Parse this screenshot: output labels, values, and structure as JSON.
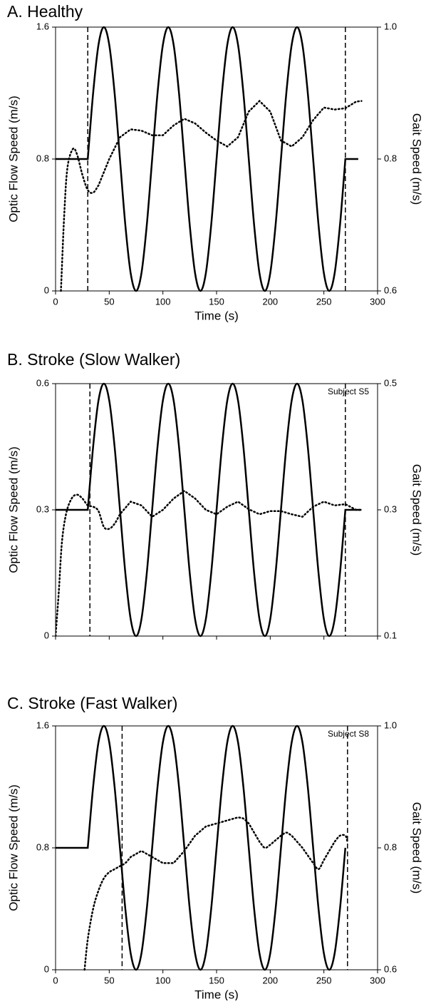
{
  "chart_data": [
    {
      "type": "line",
      "title": "A. Healthy",
      "xlabel": "Time (s)",
      "ylabel": "Optic Flow Speed (m/s)",
      "y2label": "Gait Speed (m/s)",
      "xlim": [
        0,
        300
      ],
      "xticks": [
        0,
        50,
        100,
        150,
        200,
        250,
        300
      ],
      "show_xtick_labels": true,
      "ylim": [
        0,
        1.6
      ],
      "yticks": [
        0,
        0.8,
        1.6
      ],
      "y2lim": [
        0.6,
        1.0
      ],
      "y2ticks": [
        0.6,
        0.8,
        {
          "value": 1.0,
          "label": "1.0"
        }
      ],
      "vlines": [
        30,
        270
      ],
      "series": [
        {
          "color": "#000000",
          "style": "solid",
          "axis": "y",
          "x": [
            0,
            30,
            35,
            40,
            45,
            50,
            55,
            60,
            65,
            70,
            75,
            80,
            85,
            90,
            95,
            100,
            105,
            110,
            115,
            120,
            125,
            130,
            135,
            140,
            145,
            150,
            155,
            160,
            165,
            170,
            175,
            180,
            185,
            190,
            195,
            200,
            205,
            210,
            215,
            220,
            225,
            230,
            235,
            240,
            245,
            250,
            255,
            260,
            265,
            270,
            282
          ],
          "values": [
            0.8,
            0.8,
            1.2,
            1.493,
            1.6,
            1.493,
            1.2,
            0.8,
            0.4,
            0.107,
            0,
            0.107,
            0.4,
            0.8,
            1.2,
            1.493,
            1.6,
            1.493,
            1.2,
            0.8,
            0.4,
            0.107,
            0,
            0.107,
            0.4,
            0.8,
            1.2,
            1.493,
            1.6,
            1.493,
            1.2,
            0.8,
            0.4,
            0.107,
            0,
            0.107,
            0.4,
            0.8,
            1.2,
            1.493,
            1.6,
            1.493,
            1.2,
            0.8,
            0.4,
            0.107,
            0,
            0.107,
            0.4,
            0.8,
            0.8
          ]
        },
        {
          "color": "#000000",
          "style": "dotted",
          "axis": "y2",
          "x": [
            5,
            8,
            11,
            16,
            20,
            25,
            30,
            35,
            40,
            50,
            60,
            70,
            80,
            90,
            100,
            110,
            120,
            130,
            140,
            150,
            160,
            170,
            180,
            190,
            200,
            210,
            220,
            230,
            240,
            250,
            260,
            270,
            280,
            285
          ],
          "values": [
            0.6,
            0.713,
            0.786,
            0.815,
            0.807,
            0.776,
            0.753,
            0.749,
            0.76,
            0.8,
            0.833,
            0.845,
            0.843,
            0.836,
            0.836,
            0.851,
            0.861,
            0.854,
            0.84,
            0.828,
            0.819,
            0.833,
            0.872,
            0.888,
            0.872,
            0.828,
            0.819,
            0.833,
            0.859,
            0.878,
            0.875,
            0.877,
            0.887,
            0.888
          ]
        }
      ]
    },
    {
      "type": "line",
      "title": "B. Stroke (Slow Walker)",
      "ylabel": "Optic Flow Speed (m/s)",
      "y2label": "Gait Speed (m/s)",
      "annotation": "Subject S5",
      "xlim": [
        0,
        300
      ],
      "xticks": [
        0,
        50,
        100,
        150,
        200,
        250,
        300
      ],
      "show_xtick_labels": false,
      "ylim": [
        0,
        0.6
      ],
      "yticks": [
        0,
        0.3,
        0.6
      ],
      "y2lim": [
        0.1,
        0.5
      ],
      "y2ticks": [
        0.1,
        0.3,
        0.5
      ],
      "vlines": [
        32,
        270
      ],
      "series": [
        {
          "color": "#000000",
          "style": "solid",
          "axis": "y",
          "x": [
            0,
            30,
            35,
            40,
            45,
            50,
            55,
            60,
            65,
            70,
            75,
            80,
            85,
            90,
            95,
            100,
            105,
            110,
            115,
            120,
            125,
            130,
            135,
            140,
            145,
            150,
            155,
            160,
            165,
            170,
            175,
            180,
            185,
            190,
            195,
            200,
            205,
            210,
            215,
            220,
            225,
            230,
            235,
            240,
            245,
            250,
            255,
            260,
            265,
            270,
            285
          ],
          "values": [
            0.3,
            0.3,
            0.45,
            0.56,
            0.6,
            0.56,
            0.45,
            0.3,
            0.15,
            0.04,
            0,
            0.04,
            0.15,
            0.3,
            0.45,
            0.56,
            0.6,
            0.56,
            0.45,
            0.3,
            0.15,
            0.04,
            0,
            0.04,
            0.15,
            0.3,
            0.45,
            0.56,
            0.6,
            0.56,
            0.45,
            0.3,
            0.15,
            0.04,
            0,
            0.04,
            0.15,
            0.3,
            0.45,
            0.56,
            0.6,
            0.56,
            0.45,
            0.3,
            0.15,
            0.04,
            0,
            0.04,
            0.15,
            0.3,
            0.3
          ]
        },
        {
          "color": "#000000",
          "style": "dotted",
          "axis": "y2",
          "x": [
            0,
            3,
            6,
            10,
            15,
            20,
            25,
            30,
            35,
            40,
            45,
            50,
            55,
            60,
            70,
            80,
            90,
            100,
            110,
            120,
            130,
            140,
            150,
            160,
            170,
            180,
            190,
            200,
            210,
            220,
            230,
            240,
            250,
            260,
            270,
            280,
            285
          ],
          "values": [
            0.1,
            0.17,
            0.25,
            0.295,
            0.318,
            0.324,
            0.318,
            0.307,
            0.305,
            0.298,
            0.273,
            0.27,
            0.278,
            0.293,
            0.313,
            0.307,
            0.289,
            0.3,
            0.318,
            0.33,
            0.318,
            0.3,
            0.293,
            0.305,
            0.313,
            0.301,
            0.293,
            0.298,
            0.298,
            0.293,
            0.289,
            0.305,
            0.313,
            0.307,
            0.309,
            0.3,
            0.3
          ]
        }
      ]
    },
    {
      "type": "line",
      "title": "C. Stroke (Fast Walker)",
      "xlabel": "Time (s)",
      "ylabel": "Optic Flow Speed (m/s)",
      "y2label": "Gait Speed (m/s)",
      "annotation": "Subject S8",
      "xlim": [
        0,
        300
      ],
      "xticks": [
        0,
        50,
        100,
        150,
        200,
        250,
        300
      ],
      "show_xtick_labels": true,
      "ylim": [
        0,
        1.6
      ],
      "yticks": [
        0,
        0.8,
        1.6
      ],
      "y2lim": [
        0.6,
        1.0
      ],
      "y2ticks": [
        0.6,
        0.8,
        {
          "value": 1.0,
          "label": "1.0"
        }
      ],
      "vlines": [
        62,
        272
      ],
      "series": [
        {
          "color": "#000000",
          "style": "solid",
          "axis": "y",
          "x": [
            0,
            30,
            35,
            40,
            45,
            50,
            55,
            60,
            65,
            70,
            75,
            80,
            85,
            90,
            95,
            100,
            105,
            110,
            115,
            120,
            125,
            130,
            135,
            140,
            145,
            150,
            155,
            160,
            165,
            170,
            175,
            180,
            185,
            190,
            195,
            200,
            205,
            210,
            215,
            220,
            225,
            230,
            235,
            240,
            245,
            250,
            255,
            260,
            265,
            270
          ],
          "values": [
            0.8,
            0.8,
            1.2,
            1.493,
            1.6,
            1.493,
            1.2,
            0.8,
            0.4,
            0.107,
            0,
            0.107,
            0.4,
            0.8,
            1.2,
            1.493,
            1.6,
            1.493,
            1.2,
            0.8,
            0.4,
            0.107,
            0,
            0.107,
            0.4,
            0.8,
            1.2,
            1.493,
            1.6,
            1.493,
            1.2,
            0.8,
            0.4,
            0.107,
            0,
            0.107,
            0.4,
            0.8,
            1.2,
            1.493,
            1.6,
            1.493,
            1.2,
            0.8,
            0.4,
            0.107,
            0,
            0.107,
            0.4,
            0.8
          ]
        },
        {
          "color": "#000000",
          "style": "dotted",
          "axis": "y2",
          "x": [
            27,
            30,
            35,
            40,
            45,
            50,
            55,
            60,
            65,
            70,
            80,
            90,
            100,
            110,
            120,
            130,
            140,
            150,
            160,
            170,
            175,
            180,
            190,
            195,
            200,
            210,
            215,
            220,
            230,
            240,
            245,
            250,
            260,
            265,
            270,
            272
          ],
          "values": [
            0.6,
            0.65,
            0.7,
            0.73,
            0.75,
            0.76,
            0.765,
            0.77,
            0.775,
            0.785,
            0.795,
            0.785,
            0.775,
            0.775,
            0.795,
            0.82,
            0.835,
            0.84,
            0.845,
            0.85,
            0.848,
            0.84,
            0.81,
            0.8,
            0.805,
            0.82,
            0.825,
            0.82,
            0.8,
            0.775,
            0.765,
            0.78,
            0.81,
            0.82,
            0.82,
            0.81
          ]
        }
      ]
    }
  ]
}
